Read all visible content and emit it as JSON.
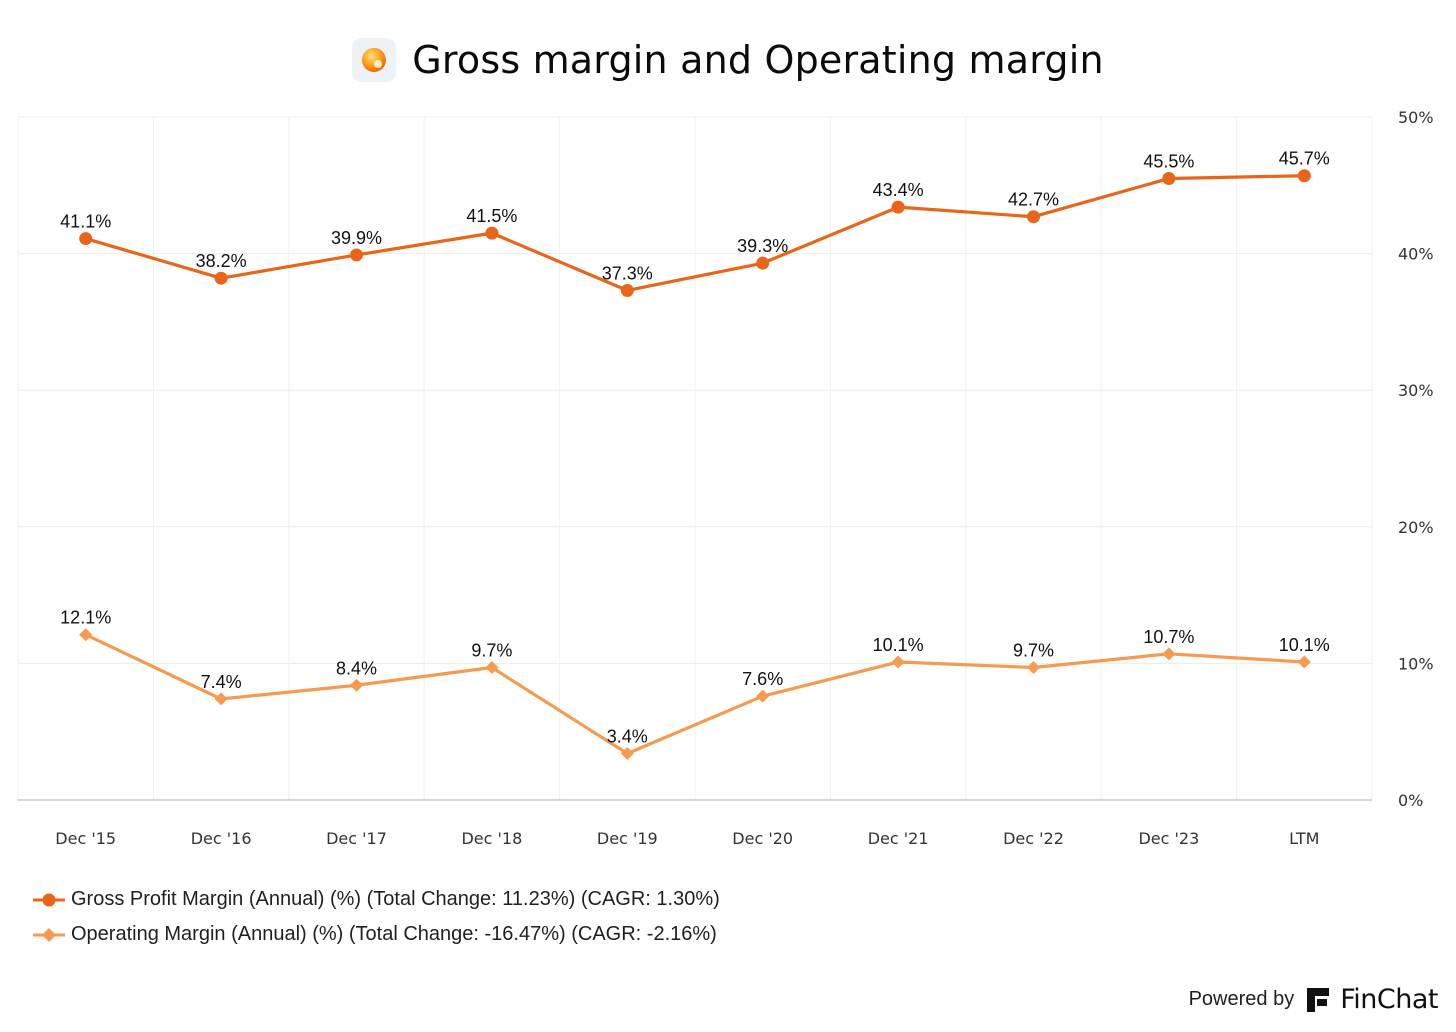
{
  "header": {
    "title": "Gross margin and Operating margin",
    "icon": "orange-sphere-icon"
  },
  "chart_data": {
    "type": "line",
    "title": "Gross margin and Operating margin",
    "categories": [
      "Dec '15",
      "Dec '16",
      "Dec '17",
      "Dec '18",
      "Dec '19",
      "Dec '20",
      "Dec '21",
      "Dec '22",
      "Dec '23",
      "LTM"
    ],
    "series": [
      {
        "name": "Gross Profit Margin (Annual) (%) (Total Change: 11.23%) (CAGR: 1.30%)",
        "values": [
          41.1,
          38.2,
          39.9,
          41.5,
          37.3,
          39.3,
          43.4,
          42.7,
          45.5,
          45.7
        ],
        "labels": [
          "41.1%",
          "38.2%",
          "39.9%",
          "41.5%",
          "37.3%",
          "39.3%",
          "43.4%",
          "42.7%",
          "45.5%",
          "45.7%"
        ],
        "color": "#e8651a",
        "marker": "circle"
      },
      {
        "name": "Operating Margin (Annual) (%) (Total Change: -16.47%) (CAGR: -2.16%)",
        "values": [
          12.1,
          7.4,
          8.4,
          9.7,
          3.4,
          7.6,
          10.1,
          9.7,
          10.7,
          10.1
        ],
        "labels": [
          "12.1%",
          "7.4%",
          "8.4%",
          "9.7%",
          "3.4%",
          "7.6%",
          "10.1%",
          "9.7%",
          "10.7%",
          "10.1%"
        ],
        "color": "#f59a4f",
        "marker": "diamond"
      }
    ],
    "y_ticks": [
      "0%",
      "10%",
      "20%",
      "30%",
      "40%",
      "50%"
    ],
    "ylim": [
      0,
      50
    ],
    "y_axis_side": "right",
    "grid": true,
    "legend_position": "bottom-left"
  },
  "footer": {
    "powered_by": "Powered by",
    "brand": "FinChat"
  }
}
